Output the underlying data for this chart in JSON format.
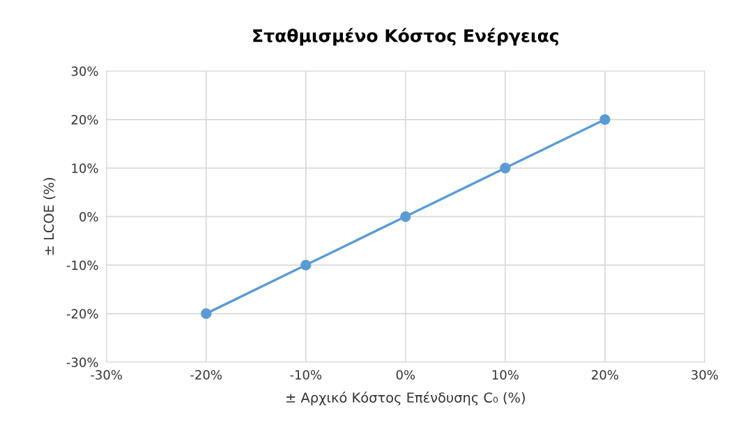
{
  "chart_data": {
    "type": "line",
    "title": "Σταθμισμένο Κόστος Ενέργειας",
    "xlabel": "± Αρχικό Κόστος Επένδυσης C₀ (%)",
    "ylabel": "± LCOE (%)",
    "x": [
      -20,
      -10,
      0,
      10,
      20
    ],
    "series": [
      {
        "color": "#5b9bd5",
        "values": [
          -20,
          -10,
          0,
          10,
          20
        ]
      }
    ],
    "xlim": [
      -30,
      30
    ],
    "ylim": [
      -30,
      30
    ],
    "xticks": [
      {
        "value": -30,
        "label": "-30%"
      },
      {
        "value": -20,
        "label": "-20%"
      },
      {
        "value": -10,
        "label": "-10%"
      },
      {
        "value": 0,
        "label": "0%"
      },
      {
        "value": 10,
        "label": "10%"
      },
      {
        "value": 20,
        "label": "20%"
      },
      {
        "value": 30,
        "label": "30%"
      }
    ],
    "yticks": [
      {
        "value": -30,
        "label": "-30%"
      },
      {
        "value": -20,
        "label": "-20%"
      },
      {
        "value": -10,
        "label": "-10%"
      },
      {
        "value": 0,
        "label": "0%"
      },
      {
        "value": 10,
        "label": "10%"
      },
      {
        "value": 20,
        "label": "20%"
      },
      {
        "value": 30,
        "label": "30%"
      }
    ],
    "grid": true,
    "marker": "circle",
    "line_style": "solid"
  }
}
